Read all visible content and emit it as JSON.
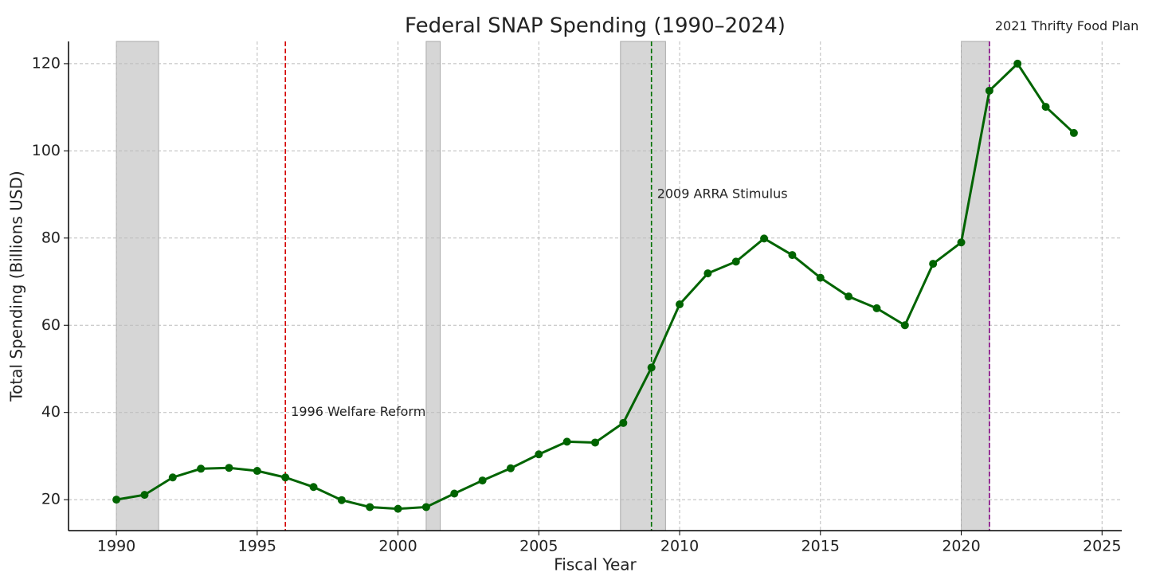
{
  "chart_data": {
    "type": "line",
    "title": "Federal SNAP Spending (1990–2024)",
    "x_label": "Fiscal Year",
    "y_label": "Total Spending (Billions USD)",
    "x": [
      1990,
      1991,
      1992,
      1993,
      1994,
      1995,
      1996,
      1997,
      1998,
      1999,
      2000,
      2001,
      2002,
      2003,
      2004,
      2005,
      2006,
      2007,
      2008,
      2009,
      2010,
      2011,
      2012,
      2013,
      2014,
      2015,
      2016,
      2017,
      2018,
      2019,
      2020,
      2021,
      2022,
      2023,
      2024
    ],
    "series": [
      {
        "color": "#006400",
        "values": [
          20.0,
          21.1,
          25.1,
          27.1,
          27.3,
          26.6,
          25.1,
          22.9,
          19.9,
          18.3,
          17.9,
          18.3,
          21.4,
          24.4,
          27.2,
          30.4,
          33.3,
          33.1,
          37.6,
          50.3,
          64.8,
          71.9,
          74.6,
          79.9,
          76.1,
          70.9,
          66.6,
          63.9,
          60.0,
          74.1,
          79.0,
          113.8,
          120.0,
          110.1,
          104.1
        ]
      }
    ],
    "shaded_spans": [
      [
        1990,
        1991.5
      ],
      [
        2001,
        2001.5
      ],
      [
        2007.9,
        2009.5
      ],
      [
        2020,
        2021
      ]
    ],
    "shade_color": "#d6d6d6",
    "annotations": [
      {
        "x": 1996,
        "y": 40,
        "text": "1996 Welfare Reform",
        "color": "#d40000"
      },
      {
        "x": 2009,
        "y": 90,
        "text": "2009 ARRA Stimulus",
        "color": "#007000"
      },
      {
        "x": 2021,
        "y": 128.5,
        "text": "2021 Thrifty Food Plan",
        "color": "#800080"
      }
    ],
    "xlim": [
      1988.3,
      2025.7
    ],
    "ylim": [
      12.9,
      125.1
    ],
    "xticks": [
      1990,
      1995,
      2000,
      2005,
      2010,
      2015,
      2020,
      2025
    ],
    "yticks": [
      20,
      40,
      60,
      80,
      100,
      120
    ],
    "grid": true
  }
}
